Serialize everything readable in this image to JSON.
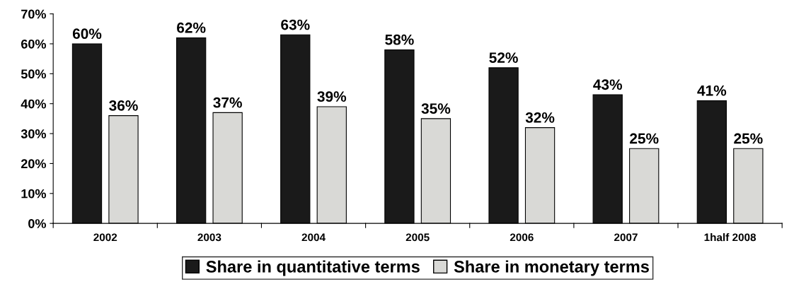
{
  "chart_data": {
    "type": "bar",
    "categories": [
      "2002",
      "2003",
      "2004",
      "2005",
      "2006",
      "2007",
      "1half 2008"
    ],
    "series": [
      {
        "name": "Share in quantitative terms",
        "color": "#1a1a1a",
        "values": [
          60,
          62,
          63,
          58,
          52,
          43,
          41
        ],
        "value_labels": [
          "60%",
          "62%",
          "63%",
          "58%",
          "52%",
          "43%",
          "41%"
        ]
      },
      {
        "name": "Share in monetary terms",
        "color": "#d9d9d6",
        "values": [
          36,
          37,
          39,
          35,
          32,
          25,
          25
        ],
        "value_labels": [
          "36%",
          "37%",
          "39%",
          "35%",
          "32%",
          "25%",
          "25%"
        ]
      }
    ],
    "ylim": [
      0,
      70
    ],
    "yticks": [
      {
        "value": 0,
        "label": "0%"
      },
      {
        "value": 10,
        "label": "10%"
      },
      {
        "value": 20,
        "label": "20%"
      },
      {
        "value": 30,
        "label": "30%"
      },
      {
        "value": 40,
        "label": "40%"
      },
      {
        "value": 50,
        "label": "50%"
      },
      {
        "value": 60,
        "label": "60%"
      },
      {
        "value": 70,
        "label": "70%"
      }
    ],
    "grid": false,
    "legend": "bottom"
  }
}
